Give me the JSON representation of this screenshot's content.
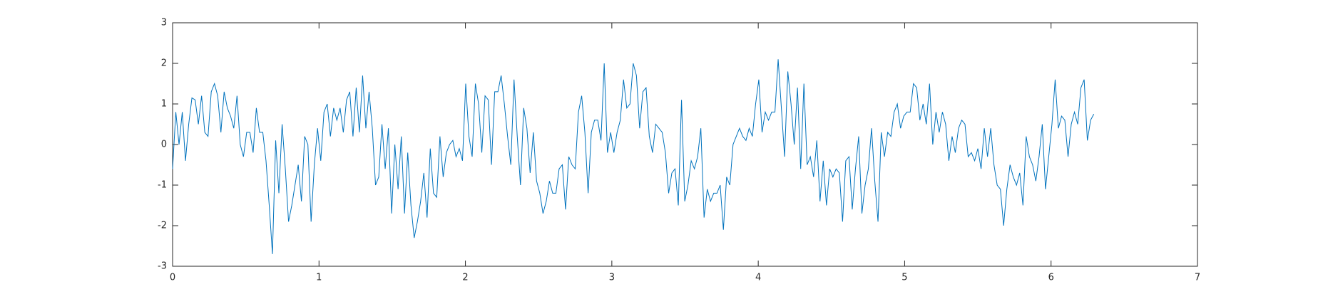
{
  "chart_data": {
    "type": "line",
    "color": "#0072bd",
    "x": [
      0,
      0.022,
      0.044,
      0.066,
      0.088,
      0.11,
      0.132,
      0.154,
      0.176,
      0.198,
      0.22,
      0.242,
      0.264,
      0.286,
      0.308,
      0.33,
      0.352,
      0.374,
      0.396,
      0.418,
      0.44,
      0.462,
      0.484,
      0.506,
      0.528,
      0.55,
      0.572,
      0.594,
      0.616,
      0.638,
      0.66,
      0.682,
      0.704,
      0.726,
      0.748,
      0.77,
      0.792,
      0.814,
      0.836,
      0.858,
      0.88,
      0.902,
      0.924,
      0.946,
      0.968,
      0.99,
      1.012,
      1.034,
      1.056,
      1.078,
      1.1,
      1.122,
      1.144,
      1.166,
      1.188,
      1.21,
      1.232,
      1.254,
      1.276,
      1.298,
      1.32,
      1.342,
      1.364,
      1.386,
      1.408,
      1.43,
      1.452,
      1.474,
      1.496,
      1.518,
      1.54,
      1.562,
      1.584,
      1.606,
      1.628,
      1.65,
      1.672,
      1.694,
      1.716,
      1.738,
      1.76,
      1.782,
      1.804,
      1.826,
      1.848,
      1.87,
      1.892,
      1.914,
      1.936,
      1.958,
      1.98,
      2.002,
      2.024,
      2.046,
      2.068,
      2.09,
      2.112,
      2.134,
      2.156,
      2.178,
      2.2,
      2.222,
      2.244,
      2.266,
      2.288,
      2.31,
      2.332,
      2.354,
      2.376,
      2.398,
      2.42,
      2.442,
      2.464,
      2.486,
      2.508,
      2.53,
      2.552,
      2.574,
      2.596,
      2.618,
      2.64,
      2.662,
      2.684,
      2.706,
      2.728,
      2.75,
      2.772,
      2.794,
      2.816,
      2.838,
      2.86,
      2.882,
      2.904,
      2.926,
      2.948,
      2.97,
      2.992,
      3.014,
      3.036,
      3.058,
      3.08,
      3.102,
      3.124,
      3.146,
      3.168,
      3.19,
      3.212,
      3.234,
      3.256,
      3.278,
      3.3,
      3.322,
      3.344,
      3.366,
      3.388,
      3.41,
      3.432,
      3.454,
      3.476,
      3.498,
      3.52,
      3.542,
      3.564,
      3.586,
      3.608,
      3.63,
      3.652,
      3.674,
      3.696,
      3.718,
      3.74,
      3.762,
      3.784,
      3.806,
      3.828,
      3.85,
      3.872,
      3.894,
      3.916,
      3.938,
      3.96,
      3.982,
      4.004,
      4.026,
      4.048,
      4.07,
      4.092,
      4.114,
      4.136,
      4.158,
      4.18,
      4.202,
      4.224,
      4.246,
      4.268,
      4.29,
      4.312,
      4.334,
      4.356,
      4.378,
      4.4,
      4.422,
      4.444,
      4.466,
      4.488,
      4.51,
      4.532,
      4.554,
      4.576,
      4.598,
      4.62,
      4.642,
      4.664,
      4.686,
      4.708,
      4.73,
      4.752,
      4.774,
      4.796,
      4.818,
      4.84,
      4.862,
      4.884,
      4.906,
      4.928,
      4.95,
      4.972,
      4.994,
      5.016,
      5.038,
      5.06,
      5.082,
      5.104,
      5.126,
      5.148,
      5.17,
      5.192,
      5.214,
      5.236,
      5.258,
      5.28,
      5.302,
      5.324,
      5.346,
      5.368,
      5.39,
      5.412,
      5.434,
      5.456,
      5.478,
      5.5,
      5.522,
      5.544,
      5.566,
      5.588,
      5.61,
      5.632,
      5.654,
      5.676,
      5.698,
      5.72,
      5.742,
      5.764,
      5.786,
      5.808,
      5.83,
      5.852,
      5.874,
      5.896,
      5.918,
      5.94,
      5.962,
      5.984,
      6.006,
      6.028,
      6.05,
      6.072,
      6.094,
      6.116,
      6.138,
      6.16,
      6.182,
      6.204,
      6.226,
      6.248,
      6.27,
      6.292
    ],
    "values": [
      -0.6,
      0.8,
      0,
      0.8,
      -0.4,
      0.5,
      1.15,
      1.1,
      0.5,
      1.2,
      0.3,
      0.2,
      1.3,
      1.5,
      1.2,
      0.3,
      1.3,
      0.9,
      0.7,
      0.4,
      1.2,
      0,
      -0.3,
      0.3,
      0.3,
      -0.2,
      0.9,
      0.3,
      0.3,
      -0.4,
      -1.5,
      -2.7,
      0.1,
      -1.2,
      0.5,
      -0.6,
      -1.9,
      -1.5,
      -1,
      -0.5,
      -1.4,
      0.2,
      0,
      -1.9,
      -0.5,
      0.4,
      -0.4,
      0.8,
      1.0,
      0.2,
      0.9,
      0.6,
      0.9,
      0.3,
      1.1,
      1.3,
      0.2,
      1.4,
      0.3,
      1.7,
      0.4,
      1.3,
      0.4,
      -1.0,
      -0.8,
      0.5,
      -0.6,
      0.4,
      -1.7,
      0,
      -1.1,
      0.2,
      -1.7,
      -0.2,
      -1.5,
      -2.3,
      -1.9,
      -1.4,
      -0.7,
      -1.8,
      -0.1,
      -1.2,
      -1.3,
      0.2,
      -0.8,
      -0.2,
      0,
      0.1,
      -0.3,
      -0.1,
      -0.4,
      1.5,
      0.2,
      -0.3,
      1.5,
      1.0,
      -0.2,
      1.2,
      1.1,
      -0.5,
      1.3,
      1.3,
      1.7,
      1.0,
      0.2,
      -0.5,
      1.6,
      0.2,
      -1.0,
      0.9,
      0.4,
      -0.7,
      0.3,
      -0.9,
      -1.2,
      -1.7,
      -1.4,
      -0.9,
      -1.2,
      -1.2,
      -0.6,
      -0.5,
      -1.6,
      -0.3,
      -0.5,
      -0.6,
      0.8,
      1.2,
      0.3,
      -1.2,
      0.3,
      0.6,
      0.6,
      0.1,
      2.0,
      -0.2,
      0.3,
      -0.2,
      0.3,
      0.6,
      1.6,
      0.9,
      1.0,
      2.0,
      1.7,
      0.4,
      1.3,
      1.4,
      0.2,
      -0.2,
      0.5,
      0.4,
      0.3,
      -0.2,
      -1.2,
      -0.7,
      -0.6,
      -1.5,
      1.1,
      -1.4,
      -1.0,
      -0.4,
      -0.6,
      -0.3,
      0.4,
      -1.8,
      -1.1,
      -1.4,
      -1.2,
      -1.2,
      -1.0,
      -2.1,
      -0.8,
      -1.0,
      0,
      0.2,
      0.4,
      0.2,
      0.1,
      0.4,
      0.2,
      1.0,
      1.6,
      0.3,
      0.8,
      0.6,
      0.8,
      0.8,
      2.1,
      0.9,
      -0.3,
      1.8,
      1.0,
      0,
      1.4,
      -0.6,
      1.5,
      -0.5,
      -0.3,
      -0.8,
      0.1,
      -1.4,
      -0.4,
      -1.5,
      -0.6,
      -0.8,
      -0.6,
      -0.7,
      -1.9,
      -0.4,
      -0.3,
      -1.6,
      -0.6,
      0.2,
      -1.7,
      -1.0,
      -0.6,
      0.4,
      -0.9,
      -1.9,
      0.3,
      -0.3,
      0.3,
      0.2,
      0.8,
      1.0,
      0.4,
      0.7,
      0.8,
      0.8,
      1.5,
      1.4,
      0.6,
      1.0,
      0.5,
      1.5,
      0,
      0.8,
      0.3,
      0.8,
      0.5,
      -0.4,
      0.2,
      -0.2,
      0.4,
      0.6,
      0.5,
      -0.3,
      -0.2,
      -0.4,
      -0.1,
      -0.6,
      0.4,
      -0.3,
      0.4,
      -0.5,
      -1.0,
      -1.1,
      -2.0,
      -1.1,
      -0.5,
      -0.8,
      -1.0,
      -0.7,
      -1.5,
      0.2,
      -0.3,
      -0.5,
      -0.9,
      -0.3,
      0.5,
      -1.1,
      -0.3,
      0.5,
      1.6,
      0.4,
      0.7,
      0.6,
      -0.3,
      0.5,
      0.8,
      0.5,
      1.4,
      1.6,
      0.1,
      0.6,
      0.75
    ],
    "xlim": [
      0,
      7
    ],
    "xticks": [
      0,
      1,
      2,
      3,
      4,
      5,
      6,
      7
    ],
    "ylim": [
      -3,
      3
    ],
    "yticks": [
      -3,
      -2,
      -1,
      0,
      1,
      2,
      3
    ]
  }
}
